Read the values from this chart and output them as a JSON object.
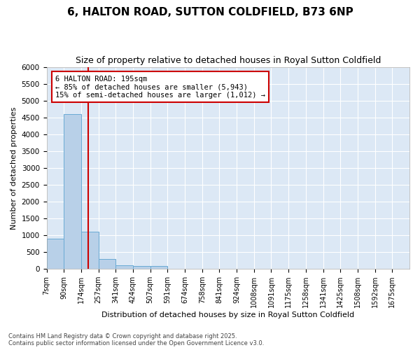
{
  "title": "6, HALTON ROAD, SUTTON COLDFIELD, B73 6NP",
  "subtitle": "Size of property relative to detached houses in Royal Sutton Coldfield",
  "xlabel": "Distribution of detached houses by size in Royal Sutton Coldfield",
  "ylabel": "Number of detached properties",
  "bin_labels": [
    "7sqm",
    "90sqm",
    "174sqm",
    "257sqm",
    "341sqm",
    "424sqm",
    "507sqm",
    "591sqm",
    "674sqm",
    "758sqm",
    "841sqm",
    "924sqm",
    "1008sqm",
    "1091sqm",
    "1175sqm",
    "1258sqm",
    "1341sqm",
    "1425sqm",
    "1508sqm",
    "1592sqm",
    "1675sqm"
  ],
  "bar_values": [
    900,
    4600,
    1100,
    300,
    100,
    80,
    80,
    0,
    0,
    0,
    0,
    0,
    0,
    0,
    0,
    0,
    0,
    0,
    0,
    0
  ],
  "bar_color": "#b8d0e8",
  "bar_edge_color": "#6aaad4",
  "property_size_bin": 3,
  "annotation_line1": "6 HALTON ROAD: 195sqm",
  "annotation_line2": "← 85% of detached houses are smaller (5,943)",
  "annotation_line3": "15% of semi-detached houses are larger (1,012) →",
  "vline_color": "#cc0000",
  "annotation_box_edge_color": "#cc0000",
  "ylim": [
    0,
    6000
  ],
  "yticks": [
    0,
    500,
    1000,
    1500,
    2000,
    2500,
    3000,
    3500,
    4000,
    4500,
    5000,
    5500,
    6000
  ],
  "footer_line1": "Contains HM Land Registry data © Crown copyright and database right 2025.",
  "footer_line2": "Contains public sector information licensed under the Open Government Licence v3.0.",
  "fig_bg_color": "#ffffff",
  "plot_bg_color": "#dce8f5",
  "grid_color": "#ffffff",
  "title_fontsize": 11,
  "subtitle_fontsize": 9,
  "ylabel_fontsize": 8,
  "xlabel_fontsize": 8,
  "tick_fontsize": 7,
  "footer_fontsize": 6
}
